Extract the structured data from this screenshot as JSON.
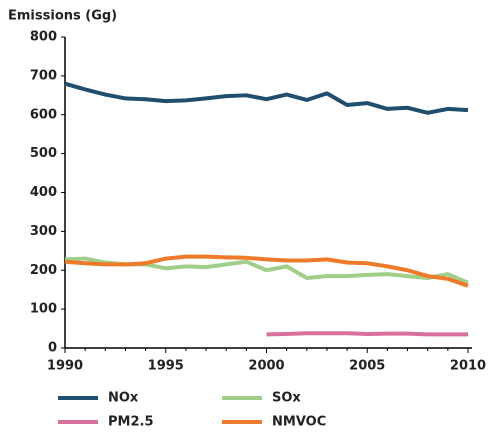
{
  "chart_data": {
    "type": "line",
    "y_label": "Emissions (Gg)",
    "x": [
      1990,
      1991,
      1992,
      1993,
      1994,
      1995,
      1996,
      1997,
      1998,
      1999,
      2000,
      2001,
      2002,
      2003,
      2004,
      2005,
      2006,
      2007,
      2008,
      2009,
      2010
    ],
    "xlim": [
      1990,
      2010
    ],
    "xticks": [
      1990,
      1995,
      2000,
      2005,
      2010
    ],
    "ylim": [
      0,
      800
    ],
    "yticks": [
      0,
      100,
      200,
      300,
      400,
      500,
      600,
      700,
      800
    ],
    "series": [
      {
        "name": "NOx",
        "color": "#1f4e6e",
        "values": [
          680,
          665,
          652,
          642,
          640,
          635,
          637,
          642,
          648,
          650,
          640,
          652,
          638,
          655,
          625,
          630,
          615,
          618,
          605,
          615,
          612
        ]
      },
      {
        "name": "SOx",
        "color": "#9fcf8a",
        "values": [
          228,
          230,
          220,
          215,
          215,
          205,
          210,
          208,
          215,
          222,
          200,
          210,
          180,
          185,
          185,
          188,
          190,
          185,
          180,
          190,
          168
        ]
      },
      {
        "name": "PM2.5",
        "color": "#d9709a",
        "values": [
          null,
          null,
          null,
          null,
          null,
          null,
          null,
          null,
          null,
          null,
          35,
          36,
          38,
          38,
          38,
          36,
          37,
          37,
          35,
          35,
          35
        ]
      },
      {
        "name": "NMVOC",
        "color": "#ee7a2a",
        "values": [
          222,
          218,
          215,
          215,
          218,
          230,
          235,
          235,
          233,
          232,
          228,
          225,
          225,
          228,
          220,
          218,
          210,
          200,
          185,
          178,
          160
        ]
      }
    ]
  }
}
